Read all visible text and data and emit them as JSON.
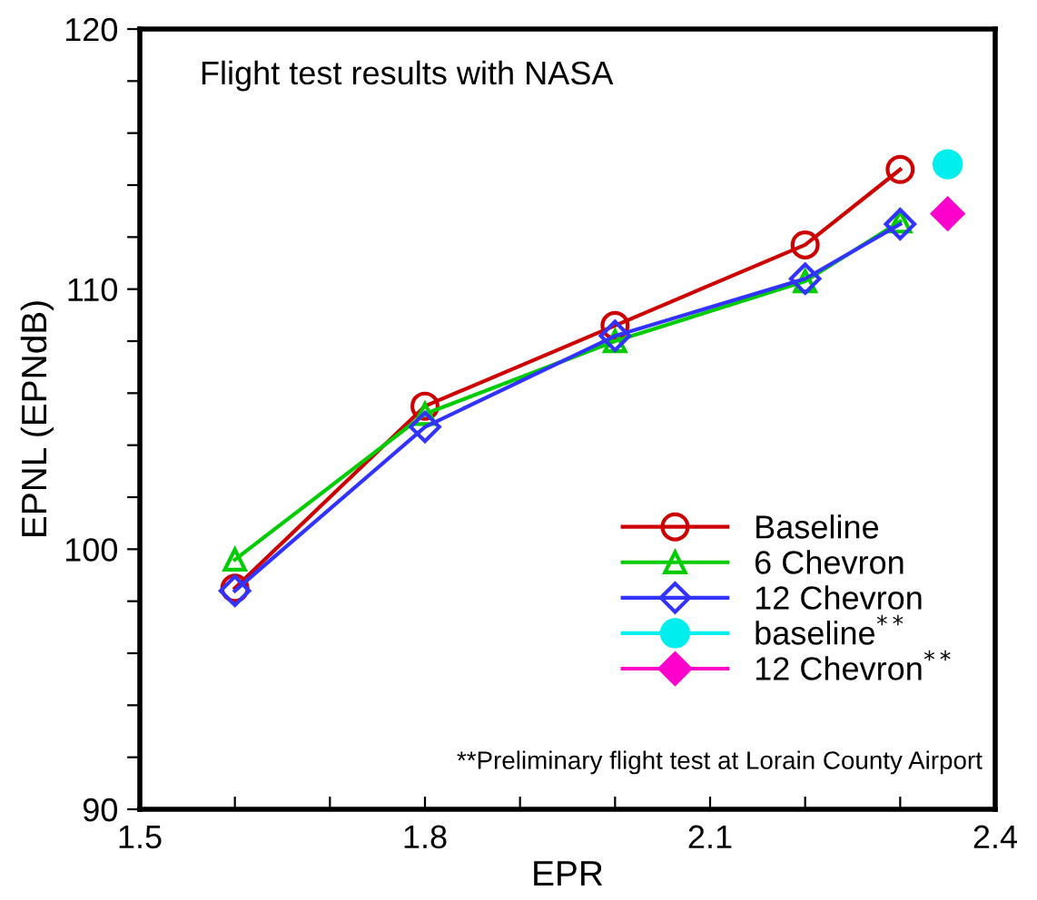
{
  "chart_data": {
    "type": "line",
    "title": "Flight test results with NASA",
    "xlabel": "EPR",
    "ylabel": "EPNL (EPNdB)",
    "x": [
      1.6,
      1.8,
      2.0,
      2.2,
      2.3
    ],
    "series": [
      {
        "name": "Baseline",
        "color": "#cc0000",
        "marker": "circle",
        "values": [
          98.5,
          105.5,
          108.6,
          111.7,
          114.6
        ]
      },
      {
        "name": "6 Chevron",
        "color": "#00cc00",
        "marker": "triangle",
        "values": [
          99.6,
          105.2,
          108.0,
          110.3,
          112.6
        ]
      },
      {
        "name": "12 Chevron",
        "color": "#3333ff",
        "marker": "diamond",
        "values": [
          98.4,
          104.7,
          108.2,
          110.4,
          112.5
        ]
      },
      {
        "name": "baseline$^{**}$",
        "type": "scatter",
        "color": "#00eeee",
        "marker": "circle",
        "x": [
          2.35
        ],
        "values": [
          114.8
        ]
      },
      {
        "name": "12 Chevron$^{**}$",
        "type": "scatter",
        "color": "#ff00cc",
        "marker": "diamond",
        "x": [
          2.35
        ],
        "values": [
          112.9
        ]
      }
    ],
    "annotations": [
      "**Preliminary flight test at Lorain County Airport"
    ],
    "xlim": [
      1.5,
      2.4
    ],
    "ylim": [
      90,
      120
    ],
    "xticks": [
      1.5,
      {
        "value": 1.6,
        "label": null
      },
      {
        "value": 1.7,
        "label": null
      },
      1.8,
      {
        "value": 1.9,
        "label": null
      },
      {
        "value": 2.0,
        "label": null
      },
      2.1,
      {
        "value": 2.2,
        "label": null
      },
      {
        "value": 2.3,
        "label": null
      },
      2.4
    ],
    "yticks": [
      90,
      {
        "value": 92,
        "label": null
      },
      {
        "value": 94,
        "label": null
      },
      {
        "value": 96,
        "label": null
      },
      {
        "value": 98,
        "label": null
      },
      100,
      {
        "value": 102,
        "label": null
      },
      {
        "value": 104,
        "label": null
      },
      {
        "value": 106,
        "label": null
      },
      {
        "value": 108,
        "label": null
      },
      110,
      {
        "value": 112,
        "label": null
      },
      {
        "value": 114,
        "label": null
      },
      {
        "value": 116,
        "label": null
      },
      {
        "value": 118,
        "label": null
      },
      120
    ],
    "grid": false,
    "legend": "bottom right"
  }
}
